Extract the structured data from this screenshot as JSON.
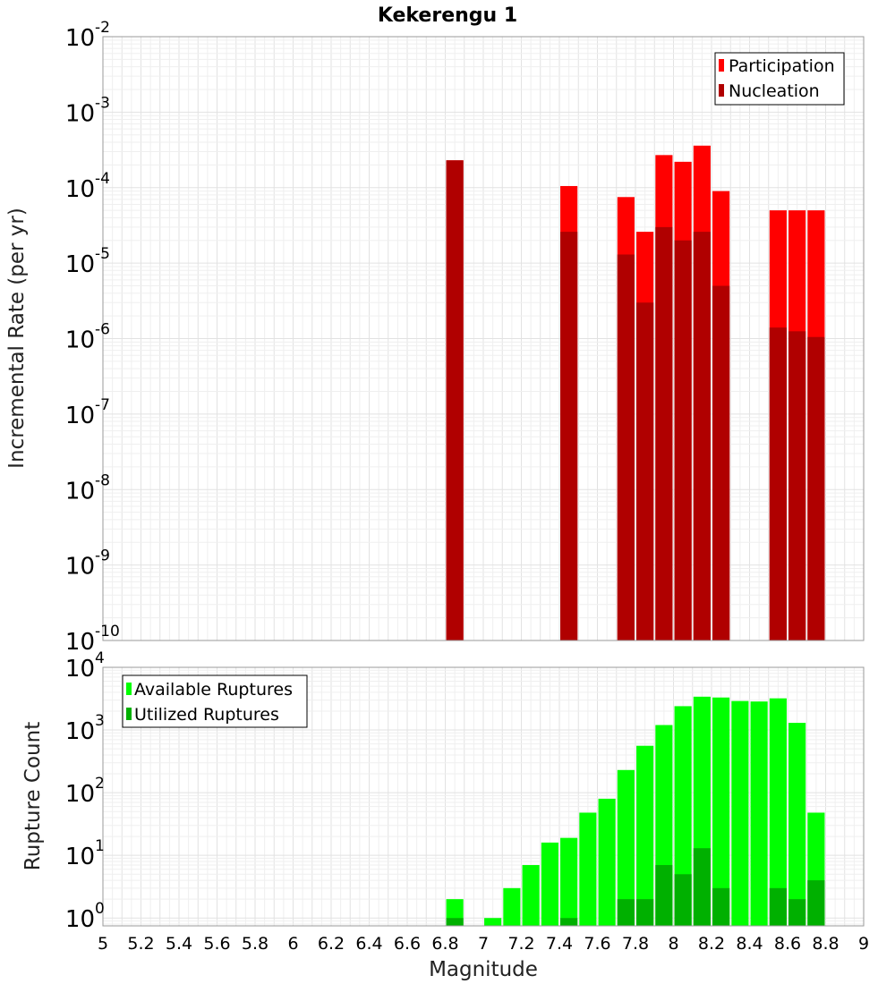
{
  "title": "Kekerengu 1",
  "chart_data": [
    {
      "type": "bar",
      "scale": "log",
      "title": "Kekerengu 1",
      "xlabel": "",
      "ylabel": "Incremental Rate (per yr)",
      "xlim": [
        5,
        9
      ],
      "ylim": [
        1e-10,
        0.01
      ],
      "grid": true,
      "legend_position": "top-right",
      "x": [
        6.85,
        7.45,
        7.75,
        7.85,
        7.95,
        8.05,
        8.15,
        8.25,
        8.55,
        8.65,
        8.75
      ],
      "series": [
        {
          "name": "Participation",
          "color": "#ff0000",
          "values": [
            0.00023,
            0.000105,
            7.5e-05,
            2.6e-05,
            0.00027,
            0.00022,
            0.00036,
            9e-05,
            5e-05,
            5e-05,
            5e-05
          ]
        },
        {
          "name": "Nucleation",
          "color": "#b00000",
          "values": [
            0.00023,
            2.6e-05,
            1.3e-05,
            3e-06,
            3e-05,
            2e-05,
            2.6e-05,
            5e-06,
            1.4e-06,
            1.25e-06,
            1.05e-06
          ]
        }
      ],
      "y_ticks": [
        {
          "base": "10",
          "exp": "-2"
        },
        {
          "base": "10",
          "exp": "-3"
        },
        {
          "base": "10",
          "exp": "-4"
        },
        {
          "base": "10",
          "exp": "-5"
        },
        {
          "base": "10",
          "exp": "-6"
        },
        {
          "base": "10",
          "exp": "-7"
        },
        {
          "base": "10",
          "exp": "-8"
        },
        {
          "base": "10",
          "exp": "-9"
        },
        {
          "base": "10",
          "exp": "-10"
        }
      ]
    },
    {
      "type": "bar",
      "scale": "log",
      "title": "",
      "xlabel": "Magnitude",
      "ylabel": "Rupture Count",
      "xlim": [
        5,
        9
      ],
      "ylim": [
        0.75,
        10000
      ],
      "grid": true,
      "legend_position": "top-left",
      "x": [
        6.85,
        7.05,
        7.15,
        7.25,
        7.35,
        7.45,
        7.55,
        7.65,
        7.75,
        7.85,
        7.95,
        8.05,
        8.15,
        8.25,
        8.35,
        8.45,
        8.55,
        8.65,
        8.75
      ],
      "series": [
        {
          "name": "Available Ruptures",
          "color": "#00ff00",
          "values": [
            2,
            1,
            3,
            7,
            16,
            19,
            48,
            80,
            230,
            560,
            1200,
            2400,
            3400,
            3300,
            2900,
            2850,
            3200,
            1300,
            48
          ]
        },
        {
          "name": "Utilized Ruptures",
          "color": "#00b000",
          "values": [
            1,
            0,
            0,
            0,
            0,
            1,
            0,
            0,
            2,
            2,
            7,
            5,
            13,
            3,
            0,
            0,
            3,
            2,
            4
          ]
        }
      ],
      "x_ticks": [
        "5",
        "5.2",
        "5.4",
        "5.6",
        "5.8",
        "6",
        "6.2",
        "6.4",
        "6.6",
        "6.8",
        "7",
        "7.2",
        "7.4",
        "7.6",
        "7.8",
        "8",
        "8.2",
        "8.4",
        "8.6",
        "8.8",
        "9"
      ],
      "y_ticks": [
        {
          "base": "10",
          "exp": "4"
        },
        {
          "base": "10",
          "exp": "3"
        },
        {
          "base": "10",
          "exp": "2"
        },
        {
          "base": "10",
          "exp": "1"
        },
        {
          "base": "10",
          "exp": "0"
        }
      ]
    }
  ]
}
